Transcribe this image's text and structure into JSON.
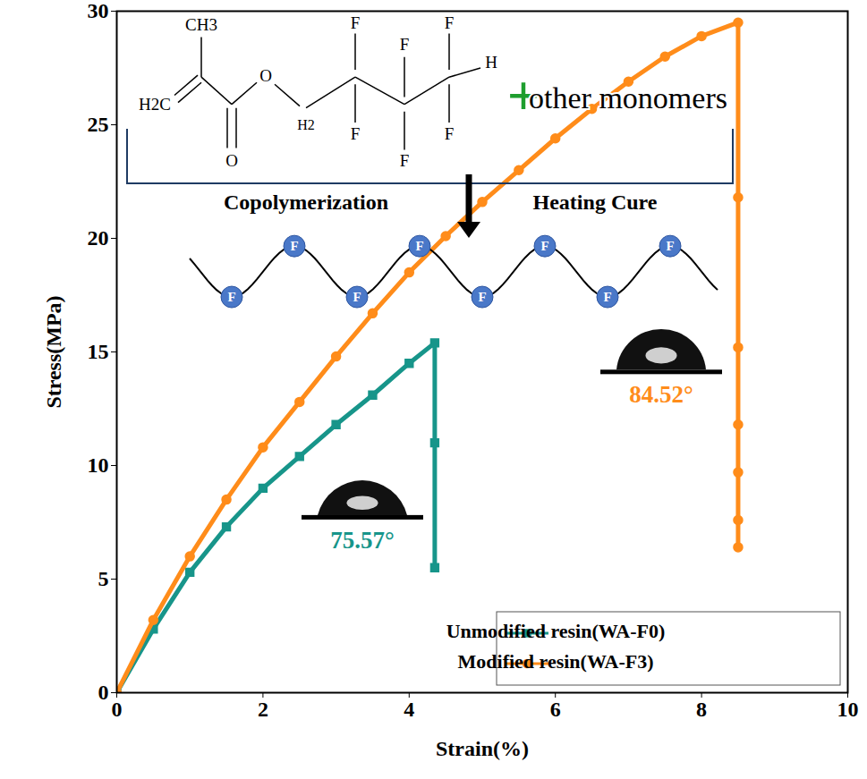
{
  "chart_data": {
    "type": "line",
    "x_label": "Strain(%)",
    "y_label": "Stress(MPa)",
    "xlim": [
      0,
      10
    ],
    "ylim": [
      0,
      30
    ],
    "xticks": [
      0,
      2,
      4,
      6,
      8,
      10
    ],
    "yticks": [
      0,
      5,
      10,
      15,
      20,
      25,
      30
    ],
    "grid": false,
    "legend": "lower right",
    "series": [
      {
        "name": "Unmodified resin(WA-F0)",
        "color": "#17958a",
        "marker": "square",
        "x": [
          0,
          0.5,
          1,
          1.5,
          2,
          2.5,
          3,
          3.5,
          4,
          4.35,
          4.35,
          4.35
        ],
        "values": [
          0,
          2.8,
          5.3,
          7.3,
          9.0,
          10.4,
          11.8,
          13.1,
          14.5,
          15.4,
          11.0,
          5.5
        ],
        "contact_angle": {
          "value": 75.57,
          "label": "75.57°"
        }
      },
      {
        "name": "Modified resin(WA-F3)",
        "color": "#ff8c1a",
        "marker": "circle",
        "x": [
          0,
          0.5,
          1,
          1.5,
          2,
          2.5,
          3,
          3.5,
          4,
          4.5,
          5,
          5.5,
          6,
          6.5,
          7,
          7.5,
          8,
          8.5,
          8.5,
          8.5,
          8.5,
          8.5,
          8.5,
          8.5
        ],
        "values": [
          0,
          3.2,
          6.0,
          8.5,
          10.8,
          12.8,
          14.8,
          16.7,
          18.5,
          20.1,
          21.6,
          23.0,
          24.4,
          25.7,
          26.9,
          28.0,
          28.9,
          29.5,
          21.8,
          15.2,
          11.8,
          9.7,
          7.6,
          6.4
        ],
        "contact_angle": {
          "value": 84.52,
          "label": "84.52°"
        }
      }
    ],
    "annotations": {
      "monomer_atoms": {
        "methyl": "CH3",
        "vinyl": "H2C",
        "oxygen": "O",
        "methylene": "H2",
        "fluorine": "F",
        "hydrogen": "H"
      },
      "plus": "+",
      "comonomers": "other monomers",
      "steps": [
        "Copolymerization",
        "Heating Cure"
      ],
      "chain_label": "F"
    }
  }
}
